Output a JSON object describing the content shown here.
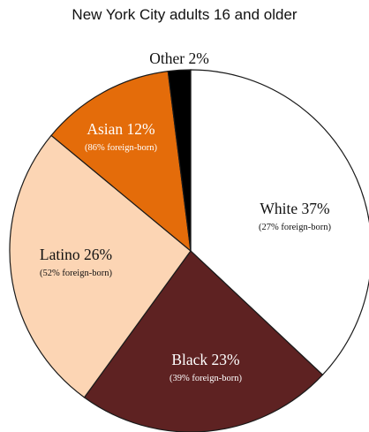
{
  "chart_data": {
    "type": "pie",
    "title": "New York City adults 16 and older",
    "slices": [
      {
        "name": "White",
        "value": 37,
        "label": "White 37%",
        "note": "(27% foreign-born)",
        "color": "#ffffff",
        "text_color": "#111111"
      },
      {
        "name": "Black",
        "value": 23,
        "label": "Black 23%",
        "note": "(39% foreign-born)",
        "color": "#5e2222",
        "text_color": "#ffffff"
      },
      {
        "name": "Latino",
        "value": 26,
        "label": "Latino 26%",
        "note": "(52% foreign-born)",
        "color": "#fcd5b4",
        "text_color": "#111111"
      },
      {
        "name": "Asian",
        "value": 12,
        "label": "Asian 12%",
        "note": "(86% foreign-born)",
        "color": "#e46c0a",
        "text_color": "#ffffff"
      },
      {
        "name": "Other",
        "value": 2,
        "label": "Other 2%",
        "note": "",
        "color": "#000000",
        "text_color": "#111111"
      }
    ],
    "start_angle": "12 o'clock",
    "direction": "clockwise",
    "legend": "none"
  }
}
